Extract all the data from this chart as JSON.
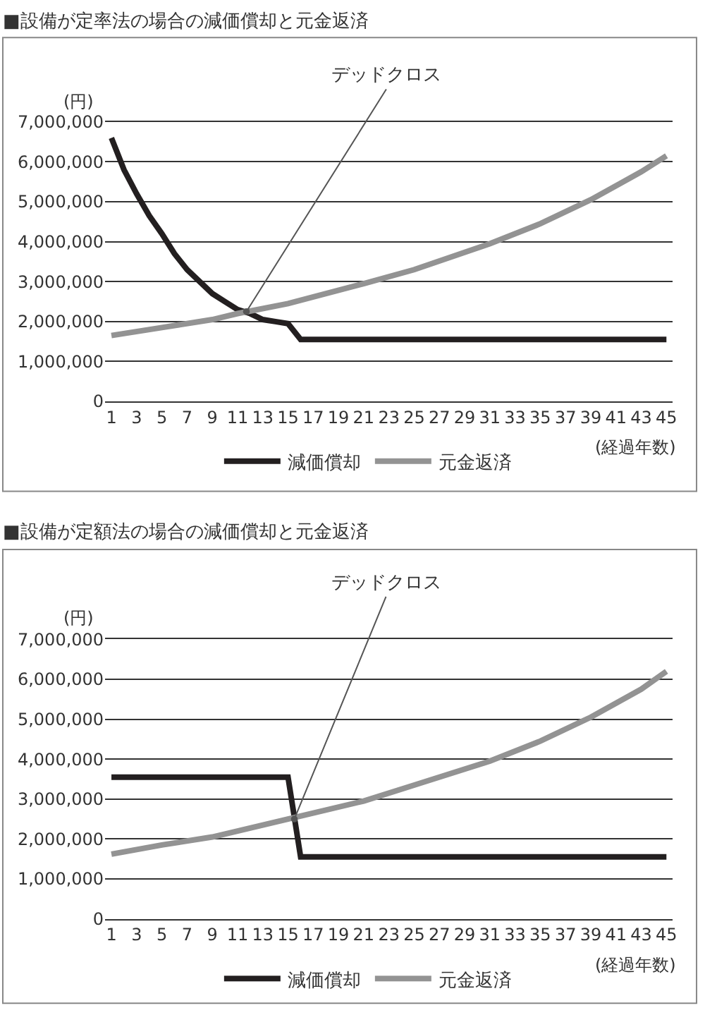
{
  "chart_data": [
    {
      "type": "line",
      "title": "■設備が定率法の場合の減価償却と元金返済",
      "ylabel": "(円)",
      "xlabel": "(経過年数)",
      "xlim": [
        0.5,
        45.5
      ],
      "xticks": [
        1,
        3,
        5,
        7,
        9,
        11,
        13,
        15,
        17,
        19,
        21,
        23,
        25,
        27,
        29,
        31,
        33,
        35,
        37,
        39,
        41,
        43,
        45
      ],
      "ylim": [
        0,
        7000000
      ],
      "yticks": [
        {
          "value": 0,
          "label": "0"
        },
        {
          "value": 1000000,
          "label": "1,000,000"
        },
        {
          "value": 2000000,
          "label": "2,000,000"
        },
        {
          "value": 3000000,
          "label": "3,000,000"
        },
        {
          "value": 4000000,
          "label": "4,000,000"
        },
        {
          "value": 5000000,
          "label": "5,000,000"
        },
        {
          "value": 6000000,
          "label": "6,000,000"
        },
        {
          "value": 7000000,
          "label": "7,000,000"
        }
      ],
      "grid": "y",
      "legend": "bottom",
      "marker": "none",
      "line_style": "solid",
      "series": [
        {
          "name": "減価償却",
          "color": "#231f20",
          "x": [
            1,
            2,
            3,
            4,
            5,
            6,
            7,
            8,
            9,
            10,
            11,
            12,
            13,
            14,
            15,
            16,
            20,
            30,
            45
          ],
          "values": [
            6600000,
            5800000,
            5200000,
            4650000,
            4200000,
            3700000,
            3300000,
            3000000,
            2700000,
            2500000,
            2300000,
            2200000,
            2050000,
            2000000,
            1950000,
            1550000,
            1550000,
            1550000,
            1550000
          ]
        },
        {
          "name": "元金返済",
          "color": "#939393",
          "x": [
            1,
            5,
            9,
            11,
            15,
            21,
            25,
            31,
            35,
            39,
            43,
            45
          ],
          "values": [
            1650000,
            1850000,
            2050000,
            2200000,
            2450000,
            2950000,
            3300000,
            3950000,
            4450000,
            5050000,
            5750000,
            6150000
          ]
        }
      ],
      "annotations": [
        {
          "text": "デッドクロス",
          "x": 11.7,
          "y": 2250000
        }
      ]
    },
    {
      "type": "line",
      "title": "■設備が定額法の場合の減価償却と元金返済",
      "ylabel": "(円)",
      "xlabel": "(経過年数)",
      "xlim": [
        0.5,
        45.5
      ],
      "xticks": [
        1,
        3,
        5,
        7,
        9,
        11,
        13,
        15,
        17,
        19,
        21,
        23,
        25,
        27,
        29,
        31,
        33,
        35,
        37,
        39,
        41,
        43,
        45
      ],
      "ylim": [
        0,
        7000000
      ],
      "yticks": [
        {
          "value": 0,
          "label": "0"
        },
        {
          "value": 1000000,
          "label": "1,000,000"
        },
        {
          "value": 2000000,
          "label": "2,000,000"
        },
        {
          "value": 3000000,
          "label": "3,000,000"
        },
        {
          "value": 4000000,
          "label": "4,000,000"
        },
        {
          "value": 5000000,
          "label": "5,000,000"
        },
        {
          "value": 6000000,
          "label": "6,000,000"
        },
        {
          "value": 7000000,
          "label": "7,000,000"
        }
      ],
      "grid": "y",
      "legend": "bottom",
      "marker": "none",
      "line_style": "solid",
      "series": [
        {
          "name": "減価償却",
          "color": "#231f20",
          "x": [
            1,
            15,
            16,
            45
          ],
          "values": [
            3550000,
            3550000,
            1550000,
            1550000
          ]
        },
        {
          "name": "元金返済",
          "color": "#939393",
          "x": [
            1,
            5,
            9,
            11,
            15,
            21,
            25,
            31,
            35,
            39,
            43,
            45
          ],
          "values": [
            1620000,
            1850000,
            2050000,
            2200000,
            2500000,
            2950000,
            3350000,
            3950000,
            4450000,
            5050000,
            5750000,
            6200000
          ]
        }
      ],
      "annotations": [
        {
          "text": "デッドクロス",
          "x": 15.5,
          "y": 2500000
        }
      ]
    }
  ]
}
